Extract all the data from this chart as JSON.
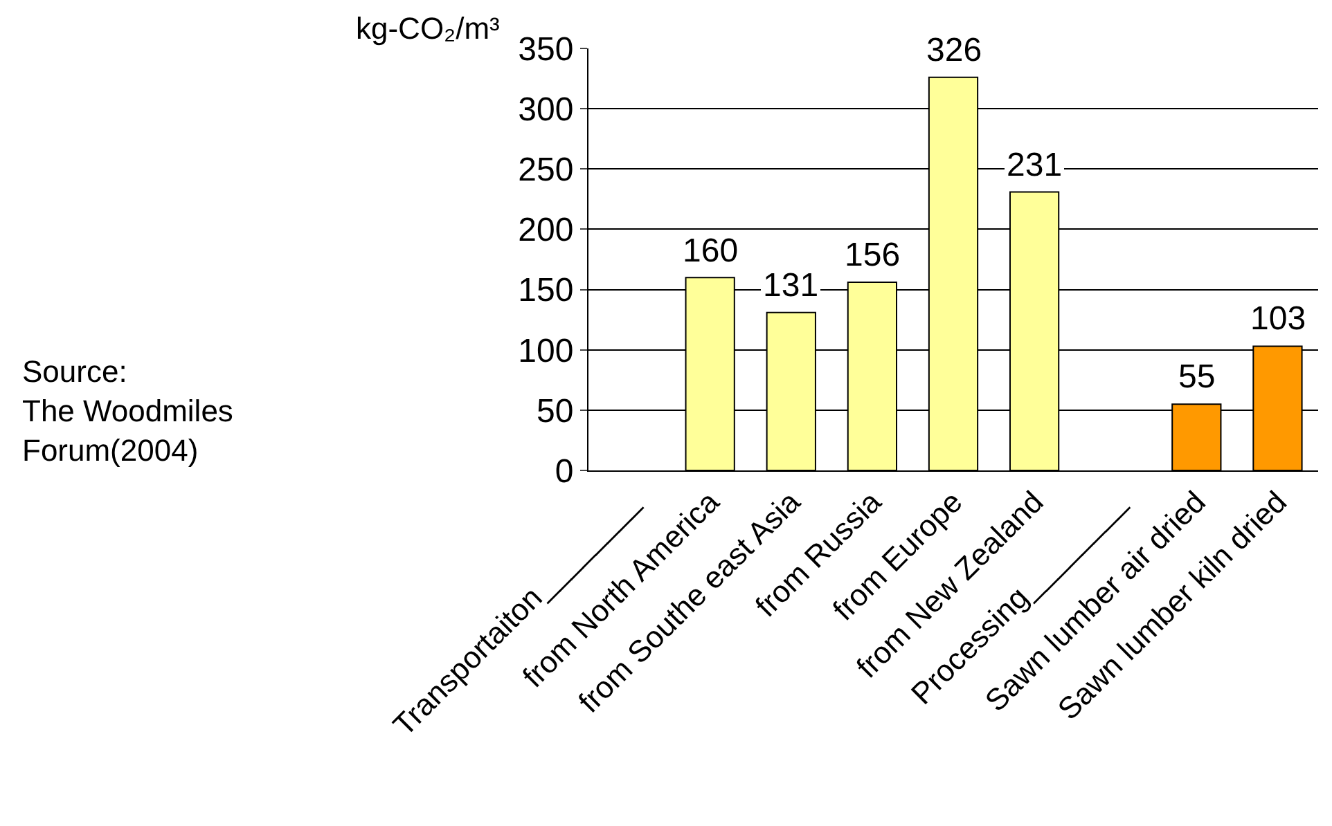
{
  "chart_data": {
    "type": "bar",
    "ylabel": "kg-CO₂/m³",
    "categories": [
      "Transportaiton________",
      "from North America",
      "from Southe east Asia",
      "from Russia",
      "from Europe",
      "from New Zealand",
      "Processing________",
      "Sawn lumber air dried",
      "Sawn lumber kiln dried"
    ],
    "values": [
      null,
      160,
      131,
      156,
      326,
      231,
      null,
      55,
      103
    ],
    "colors": [
      "#99b3b3",
      "#ffff99",
      "#ffff99",
      "#ffff99",
      "#ffff99",
      "#ffff99",
      "#99b3b3",
      "#ff9900",
      "#ff9900"
    ],
    "ylim": [
      0,
      350
    ],
    "yticks": [
      0,
      50,
      100,
      150,
      200,
      250,
      300,
      350
    ],
    "grid": "y",
    "data_labels": true,
    "legend": false,
    "annotations": [
      "Source:\nThe Woodmiles\nForum(2004)"
    ]
  }
}
